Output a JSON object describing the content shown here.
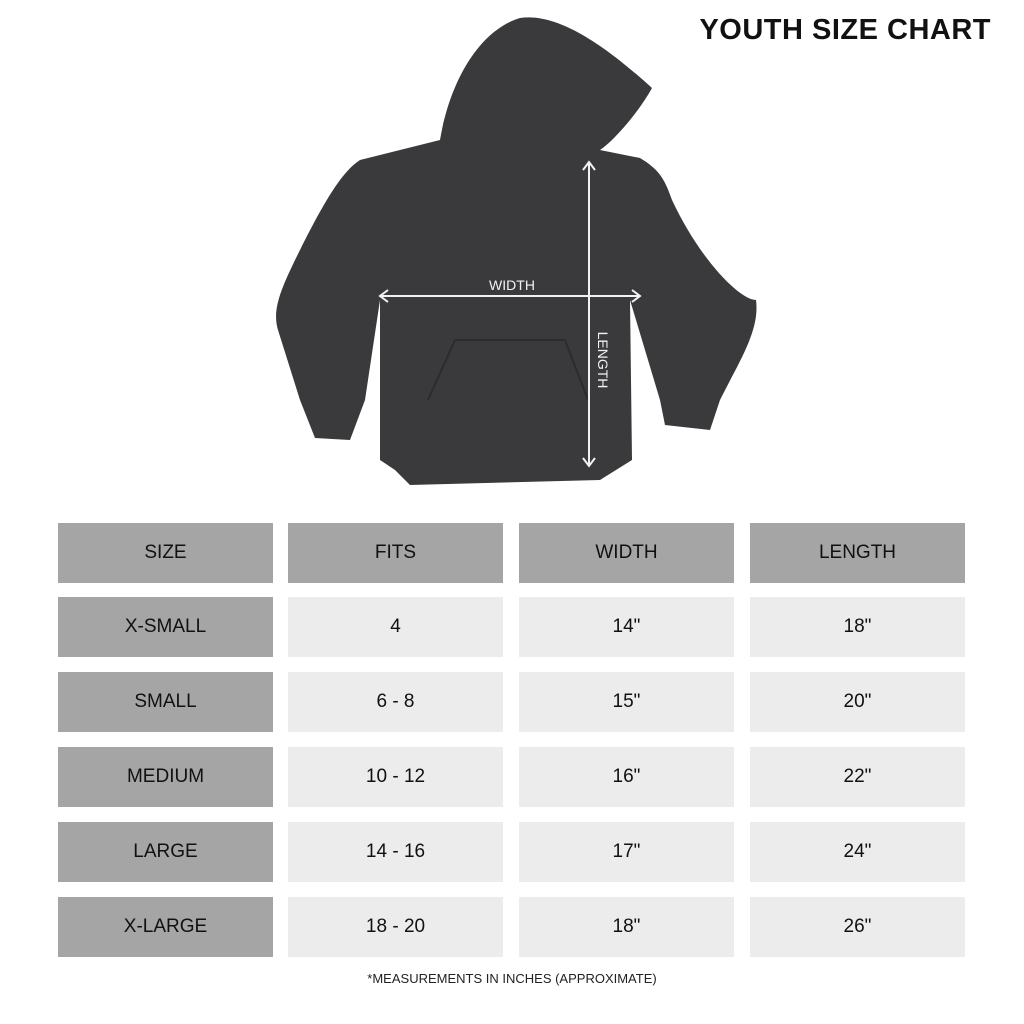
{
  "title": "YOUTH SIZE CHART",
  "diagram": {
    "width_label": "WIDTH",
    "length_label": "LENGTH",
    "garment_color": "#3a3a3c"
  },
  "table": {
    "headers": [
      "SIZE",
      "FITS",
      "WIDTH",
      "LENGTH"
    ],
    "rows": [
      [
        "X-SMALL",
        "4",
        "14\"",
        "18\""
      ],
      [
        "SMALL",
        "6 - 8",
        "15\"",
        "20\""
      ],
      [
        "MEDIUM",
        "10 - 12",
        "16\"",
        "22\""
      ],
      [
        "LARGE",
        "14 - 16",
        "17\"",
        "24\""
      ],
      [
        "X-LARGE",
        "18 - 20",
        "18\"",
        "26\""
      ]
    ],
    "header_color": "#a5a5a5",
    "cell_color": "#ececec"
  },
  "footnote": "*MEASUREMENTS IN INCHES (APPROXIMATE)"
}
